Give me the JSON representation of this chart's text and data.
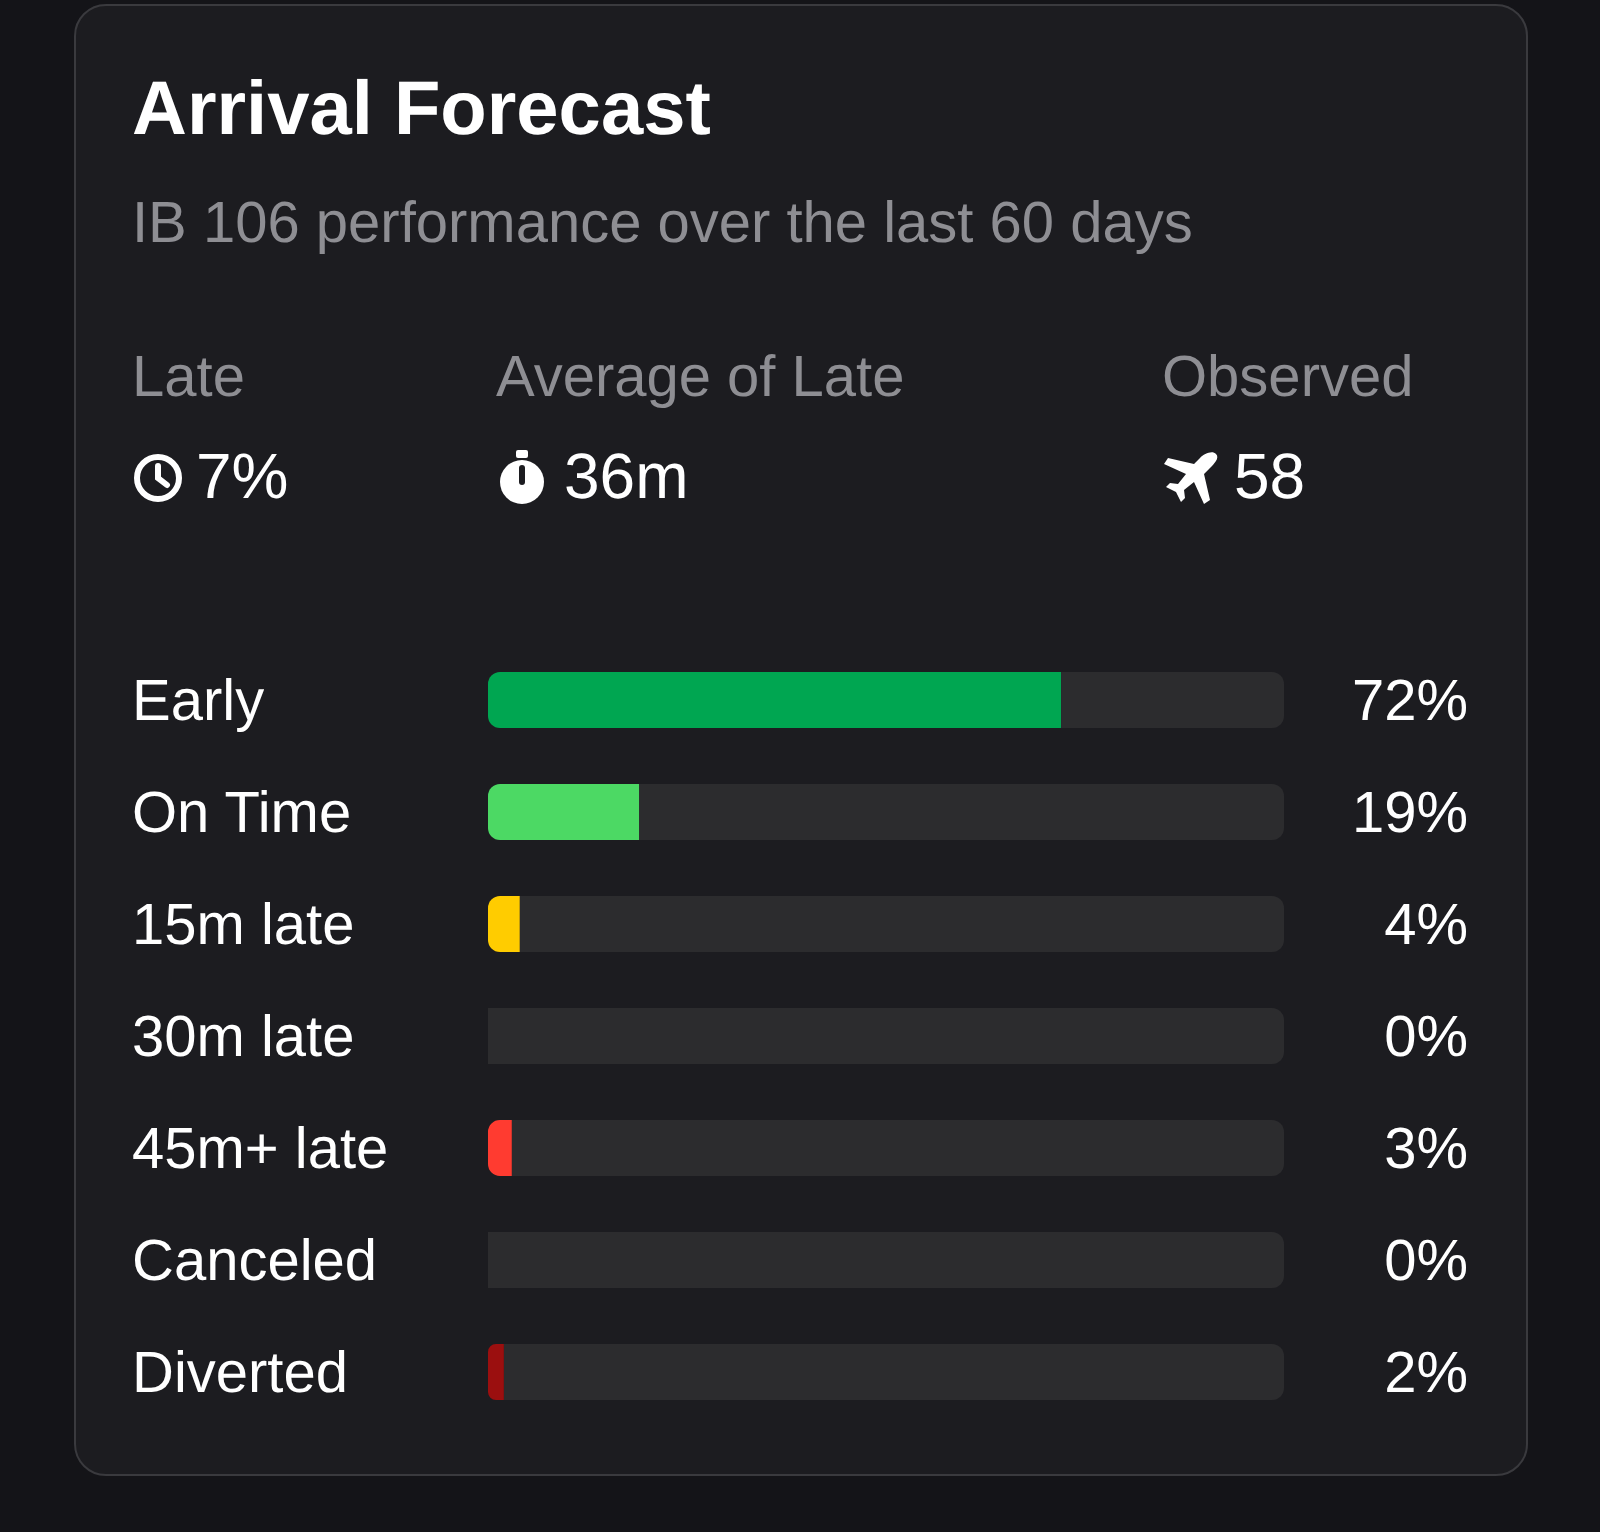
{
  "chart_data": {
    "type": "bar",
    "orientation": "horizontal",
    "stacked": true,
    "title": "Arrival Forecast",
    "subtitle": "IB 106 performance over the last 60 days",
    "annotations": [
      "Late",
      "7%",
      "Average of Late",
      "36m",
      "Observed",
      "58"
    ],
    "categories": [
      "Early",
      "On Time",
      "15m late",
      "30m late",
      "45m+ late",
      "Canceled",
      "Diverted"
    ],
    "series": [
      {
        "values": [
          72,
          19,
          4,
          0,
          3,
          0,
          2
        ],
        "colors": [
          "#00a651",
          "#4cd964",
          "#ffcc00",
          "#ff9500",
          "#ff3b30",
          "#8e8e93",
          "#9b0f0f"
        ],
        "value_labels": [
          "72%",
          "19%",
          "4%",
          "0%",
          "3%",
          "0%",
          "2%"
        ]
      },
      {
        "values": [
          28,
          81,
          96,
          100,
          97,
          100,
          98
        ],
        "color": "#2c2c2e"
      }
    ],
    "xlim": [
      0,
      100
    ],
    "tick_labels": false,
    "grid": false,
    "legend": false
  }
}
